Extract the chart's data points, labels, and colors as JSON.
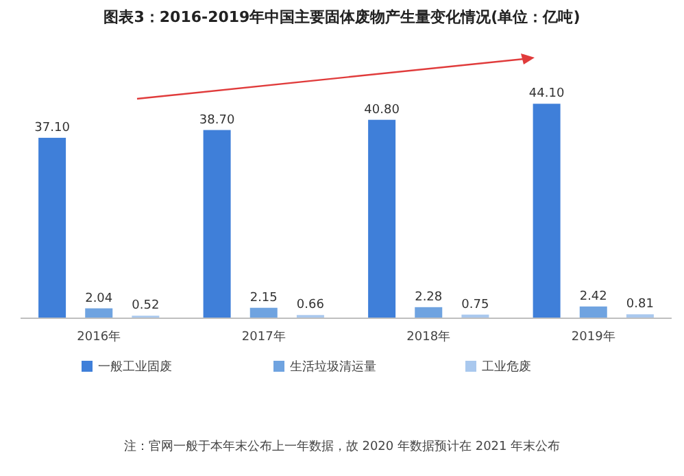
{
  "chart_data": {
    "type": "bar",
    "title": "图表3：2016-2019年中国主要固体废物产生量变化情况(单位：亿吨)",
    "categories": [
      "2016年",
      "2017年",
      "2018年",
      "2019年"
    ],
    "series": [
      {
        "name": "一般工业固废",
        "color": "#3f7fd9",
        "values": [
          37.1,
          38.7,
          40.8,
          44.1
        ],
        "value_labels": [
          "37.10",
          "38.70",
          "40.80",
          "44.10"
        ]
      },
      {
        "name": "生活垃圾清运量",
        "color": "#6fa3e0",
        "values": [
          2.04,
          2.15,
          2.28,
          2.42
        ],
        "value_labels": [
          "2.04",
          "2.15",
          "2.28",
          "2.42"
        ]
      },
      {
        "name": "工业危废",
        "color": "#a9c8ee",
        "values": [
          0.52,
          0.66,
          0.75,
          0.81
        ],
        "value_labels": [
          "0.52",
          "0.66",
          "0.75",
          "0.81"
        ]
      }
    ],
    "legend": "bottom",
    "annotations": [
      "注：官网一般于本年末公布上一年数据，故 2020 年数据预计在 2021 年末公布"
    ]
  }
}
